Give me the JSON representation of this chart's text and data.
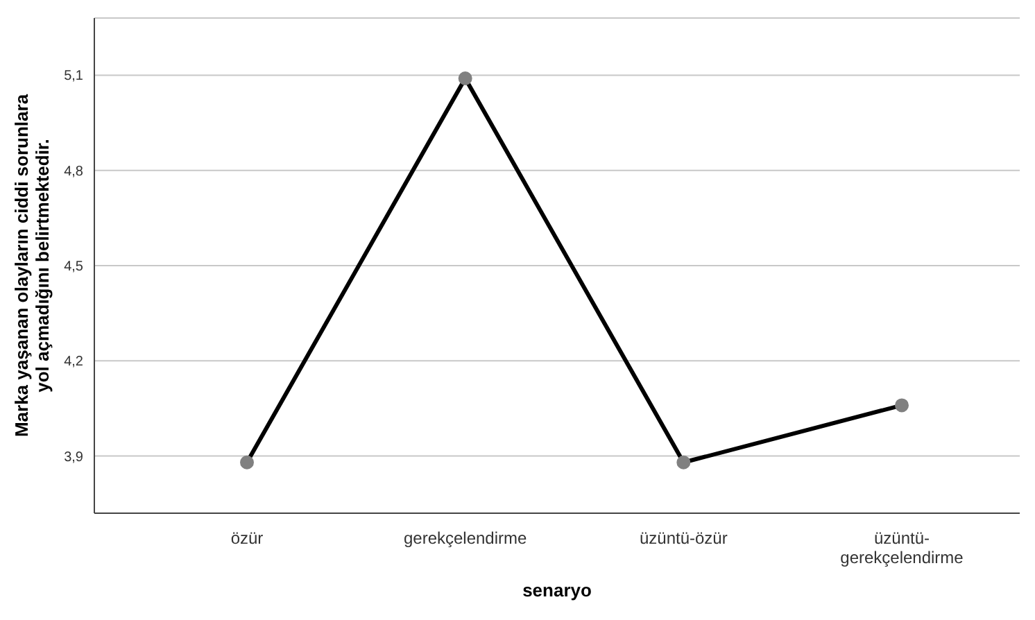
{
  "chart_data": {
    "type": "line",
    "xlabel": "senaryo",
    "ylabel": "Marka yaşanan olayların ciddi sorunlara yol açmadığını belirtmektedir.",
    "categories": [
      "özür",
      "gerekçelendirme",
      "üzüntü-özür",
      "üzüntü-gerekçelendirme"
    ],
    "series": [
      {
        "color": "#000000",
        "values": [
          3.88,
          5.09,
          3.88,
          4.06
        ]
      }
    ],
    "ylim": [
      3.72,
      5.28
    ],
    "yticks": [
      {
        "value": 3.9,
        "label": "3,9"
      },
      {
        "value": 4.2,
        "label": "4,2"
      },
      {
        "value": 4.5,
        "label": "4,5"
      },
      {
        "value": 4.8,
        "label": "4,8"
      },
      {
        "value": 5.1,
        "label": "5,1"
      }
    ],
    "grid": "y",
    "marker": "circle",
    "line_style": "solid",
    "legend": false
  }
}
